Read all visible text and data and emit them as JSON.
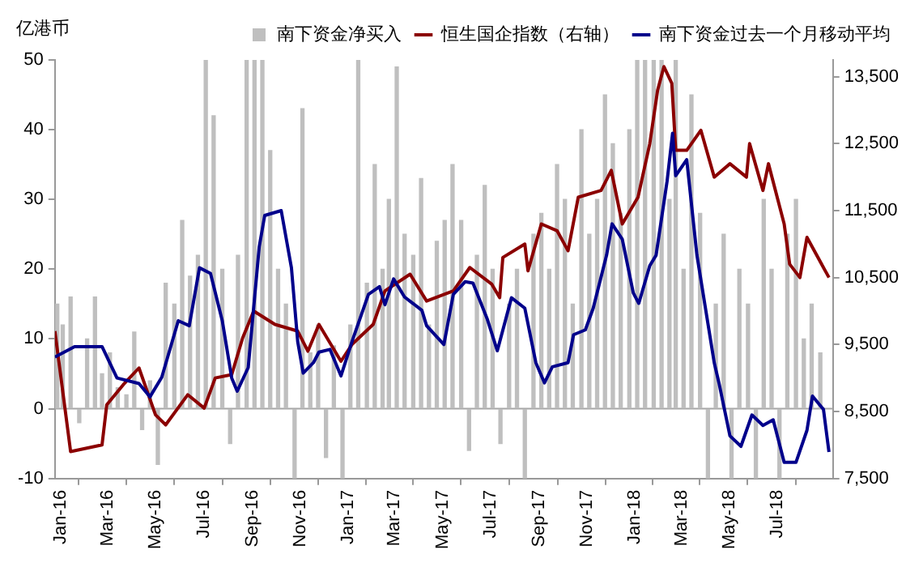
{
  "chart_data": {
    "type": "line",
    "ylabel": "亿港币",
    "legend": "top",
    "marker": "none",
    "line_style": "solid",
    "grid": false,
    "xlim": [
      "2016-01-01",
      "2018-09-17"
    ],
    "xticks": [
      {
        "value": "2016-01-01",
        "label": "Jan-16"
      },
      {
        "value": "2016-03-01",
        "label": "Mar-16"
      },
      {
        "value": "2016-05-01",
        "label": "May-16"
      },
      {
        "value": "2016-07-01",
        "label": "Jul-16"
      },
      {
        "value": "2016-09-01",
        "label": "Sep-16"
      },
      {
        "value": "2016-11-01",
        "label": "Nov-16"
      },
      {
        "value": "2017-01-01",
        "label": "Jan-17"
      },
      {
        "value": "2017-03-01",
        "label": "Mar-17"
      },
      {
        "value": "2017-05-01",
        "label": "May-17"
      },
      {
        "value": "2017-07-01",
        "label": "Jul-17"
      },
      {
        "value": "2017-09-01",
        "label": "Sep-17"
      },
      {
        "value": "2017-11-01",
        "label": "Nov-17"
      },
      {
        "value": "2018-01-01",
        "label": "Jan-18"
      },
      {
        "value": "2018-03-01",
        "label": "Mar-18"
      },
      {
        "value": "2018-05-01",
        "label": "May-18"
      },
      {
        "value": "2018-07-01",
        "label": "Jul-18"
      }
    ],
    "ylim": [
      -10,
      50
    ],
    "yticks": [
      -10,
      0,
      10,
      20,
      30,
      40,
      50
    ],
    "y2lim": [
      7500,
      13750
    ],
    "y2ticks": [
      {
        "value": 7500,
        "label": "7,500"
      },
      {
        "value": 8500,
        "label": "8,500"
      },
      {
        "value": 9500,
        "label": "9,500"
      },
      {
        "value": 10500,
        "label": "10,500"
      },
      {
        "value": 11500,
        "label": "11,500"
      },
      {
        "value": 12500,
        "label": "12,500"
      },
      {
        "value": 13500,
        "label": "13,500"
      }
    ],
    "ref_lines": [
      {
        "axis": "y",
        "value": 0,
        "color": "#a6a6a6"
      }
    ],
    "series": [
      {
        "name": "南下资金净买入",
        "type": "bar",
        "color": "#bfbfbf",
        "x": [
          "2016-01-04",
          "2016-01-11",
          "2016-01-21",
          "2016-02-01",
          "2016-02-11",
          "2016-02-21",
          "2016-03-01",
          "2016-03-11",
          "2016-03-21",
          "2016-04-01",
          "2016-04-11",
          "2016-04-21",
          "2016-05-01",
          "2016-05-11",
          "2016-05-21",
          "2016-06-01",
          "2016-06-11",
          "2016-06-21",
          "2016-07-01",
          "2016-07-11",
          "2016-07-21",
          "2016-08-01",
          "2016-08-11",
          "2016-08-21",
          "2016-09-01",
          "2016-09-11",
          "2016-09-21",
          "2016-10-01",
          "2016-10-11",
          "2016-10-21",
          "2016-11-01",
          "2016-11-11",
          "2016-11-21",
          "2016-12-01",
          "2016-12-11",
          "2016-12-21",
          "2017-01-01",
          "2017-01-11",
          "2017-01-21",
          "2017-02-01",
          "2017-02-11",
          "2017-02-21",
          "2017-03-01",
          "2017-03-11",
          "2017-03-21",
          "2017-04-01",
          "2017-04-11",
          "2017-04-21",
          "2017-05-01",
          "2017-05-11",
          "2017-05-21",
          "2017-06-01",
          "2017-06-11",
          "2017-06-21",
          "2017-07-01",
          "2017-07-11",
          "2017-07-21",
          "2017-08-01",
          "2017-08-11",
          "2017-08-21",
          "2017-09-01",
          "2017-09-11",
          "2017-09-21",
          "2017-10-01",
          "2017-10-11",
          "2017-10-21",
          "2017-11-01",
          "2017-11-11",
          "2017-11-21",
          "2017-12-01",
          "2017-12-11",
          "2017-12-21",
          "2018-01-01",
          "2018-01-11",
          "2018-01-21",
          "2018-02-01",
          "2018-02-11",
          "2018-02-21",
          "2018-03-01",
          "2018-03-11",
          "2018-03-21",
          "2018-04-01",
          "2018-04-11",
          "2018-04-21",
          "2018-05-01",
          "2018-05-11",
          "2018-05-21",
          "2018-06-01",
          "2018-06-11",
          "2018-06-21",
          "2018-07-01",
          "2018-07-11",
          "2018-07-21",
          "2018-08-01",
          "2018-08-11",
          "2018-08-21",
          "2018-09-01"
        ],
        "values": [
          15,
          12,
          16,
          -2,
          10,
          16,
          5,
          8,
          3,
          2,
          11,
          -3,
          4,
          -8,
          18,
          15,
          27,
          19,
          22,
          50,
          42,
          20,
          -5,
          22,
          50,
          50,
          50,
          37,
          20,
          15,
          -10,
          43,
          8,
          12,
          -7,
          9,
          -10,
          12,
          50,
          18,
          35,
          20,
          30,
          49,
          25,
          22,
          33,
          12,
          24,
          27,
          35,
          27,
          -6,
          22,
          32,
          20,
          -5,
          15,
          20,
          -10,
          25,
          28,
          20,
          35,
          30,
          15,
          40,
          25,
          30,
          45,
          38,
          28,
          40,
          50,
          50,
          50,
          50,
          30,
          50,
          20,
          45,
          28,
          -10,
          15,
          25,
          -10,
          20,
          15,
          -10,
          30,
          20,
          -10,
          25,
          30,
          10,
          15,
          8
        ]
      },
      {
        "name": "恒生国企指数（右轴）",
        "axis": "y2",
        "color": "#8b0000",
        "x": [
          "2016-01-01",
          "2016-01-21",
          "2016-03-01",
          "2016-03-07",
          "2016-03-28",
          "2016-04-17",
          "2016-05-08",
          "2016-05-21",
          "2016-06-18",
          "2016-07-09",
          "2016-07-23",
          "2016-08-13",
          "2016-08-27",
          "2016-09-10",
          "2016-10-07",
          "2016-11-05",
          "2016-11-18",
          "2016-12-02",
          "2016-12-30",
          "2017-01-13",
          "2017-02-09",
          "2017-02-24",
          "2017-03-28",
          "2017-04-18",
          "2017-05-22",
          "2017-06-12",
          "2017-07-10",
          "2017-07-20",
          "2017-07-24",
          "2017-08-21",
          "2017-08-25",
          "2017-09-11",
          "2017-10-01",
          "2017-10-15",
          "2017-10-28",
          "2017-11-26",
          "2017-12-09",
          "2017-12-23",
          "2018-01-12",
          "2018-01-27",
          "2018-02-06",
          "2018-02-14",
          "2018-02-24",
          "2018-03-01",
          "2018-03-15",
          "2018-04-02",
          "2018-04-19",
          "2018-05-09",
          "2018-05-30",
          "2018-06-03",
          "2018-06-20",
          "2018-06-27",
          "2018-07-17",
          "2018-07-24",
          "2018-08-06",
          "2018-08-15",
          "2018-09-12"
        ],
        "values": [
          9700,
          7900,
          8000,
          8600,
          8900,
          9150,
          8450,
          8300,
          8750,
          8550,
          9000,
          9050,
          9600,
          10000,
          9800,
          9700,
          9400,
          9800,
          9250,
          9500,
          9800,
          10300,
          10550,
          10150,
          10300,
          10650,
          10400,
          10200,
          10800,
          11000,
          10600,
          11300,
          11200,
          10900,
          11700,
          11800,
          12100,
          11300,
          11700,
          12500,
          13300,
          13650,
          13400,
          12400,
          12400,
          12700,
          12000,
          12200,
          12000,
          12500,
          11800,
          12200,
          11300,
          10700,
          10500,
          11100,
          10500
        ]
      },
      {
        "name": "南下资金过去一个月移动平均",
        "color": "#00008b",
        "x": [
          "2016-01-01",
          "2016-01-26",
          "2016-03-01",
          "2016-03-20",
          "2016-04-17",
          "2016-05-01",
          "2016-05-16",
          "2016-06-06",
          "2016-06-20",
          "2016-07-03",
          "2016-07-17",
          "2016-08-01",
          "2016-08-13",
          "2016-08-20",
          "2016-09-03",
          "2016-09-17",
          "2016-09-24",
          "2016-10-15",
          "2016-10-28",
          "2016-11-05",
          "2016-11-12",
          "2016-11-25",
          "2016-12-02",
          "2016-12-16",
          "2016-12-30",
          "2017-01-13",
          "2017-02-03",
          "2017-02-17",
          "2017-02-24",
          "2017-03-07",
          "2017-03-21",
          "2017-04-12",
          "2017-04-18",
          "2017-05-10",
          "2017-05-22",
          "2017-06-06",
          "2017-06-16",
          "2017-07-04",
          "2017-07-17",
          "2017-08-04",
          "2017-08-21",
          "2017-09-04",
          "2017-09-15",
          "2017-09-25",
          "2017-10-15",
          "2017-10-22",
          "2017-11-06",
          "2017-11-16",
          "2017-12-03",
          "2017-12-10",
          "2017-12-23",
          "2018-01-06",
          "2018-01-13",
          "2018-01-27",
          "2018-02-04",
          "2018-02-18",
          "2018-02-25",
          "2018-03-01",
          "2018-03-15",
          "2018-03-28",
          "2018-04-19",
          "2018-04-25",
          "2018-05-09",
          "2018-05-23",
          "2018-06-06",
          "2018-06-20",
          "2018-07-03",
          "2018-07-17",
          "2018-08-01",
          "2018-08-15",
          "2018-08-22",
          "2018-09-05",
          "2018-09-12"
        ],
        "values": [
          7.4,
          8.9,
          8.9,
          4.4,
          3.6,
          1.7,
          4.5,
          12.6,
          11.9,
          20.2,
          19.4,
          12.6,
          4.4,
          2.5,
          5.9,
          23.2,
          27.7,
          28.4,
          20.2,
          9.6,
          5.1,
          6.6,
          8.1,
          8.5,
          4.7,
          9.6,
          16.4,
          17.5,
          14.9,
          18.6,
          16,
          14.1,
          11.9,
          9.2,
          16.4,
          18.2,
          18,
          12.9,
          8.3,
          15.9,
          14.4,
          6.6,
          3.7,
          6,
          6.6,
          10.6,
          11.3,
          14.4,
          22,
          26.5,
          24.3,
          16.6,
          15.1,
          20.5,
          22,
          32.6,
          39.5,
          33.4,
          35.7,
          22,
          6.6,
          3.7,
          -3.9,
          -5.4,
          -0.9,
          -2.4,
          -1.6,
          -7.7,
          -7.7,
          -3.1,
          1.8,
          -0.1,
          -6.2
        ]
      }
    ]
  }
}
